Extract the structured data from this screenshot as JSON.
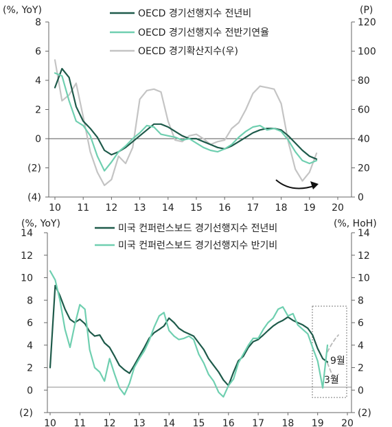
{
  "chart_data": [
    {
      "type": "line",
      "title": "",
      "y_left_unit": "(%, YoY)",
      "y_right_unit": "(P)",
      "y_left_ticks": [
        "8",
        "6",
        "4",
        "2",
        "0",
        "(2)",
        "(4)"
      ],
      "y_left_lim": [
        -4,
        8
      ],
      "y_right_ticks": [
        "120",
        "100",
        "80",
        "60",
        "40",
        "20",
        "0"
      ],
      "y_right_lim": [
        0,
        120
      ],
      "x_ticks": [
        "10",
        "11",
        "12",
        "13",
        "14",
        "15",
        "16",
        "17",
        "18",
        "19",
        "20"
      ],
      "xlim": [
        10,
        20
      ],
      "legend_position": "top",
      "series": [
        {
          "name": "OECD 경기선행지수 전년비",
          "color": "#1e5a4a",
          "axis": "left",
          "x": [
            10.0,
            10.25,
            10.5,
            10.75,
            11.0,
            11.25,
            11.5,
            11.75,
            12.0,
            12.25,
            12.5,
            12.75,
            13.0,
            13.25,
            13.5,
            13.75,
            14.0,
            14.25,
            14.5,
            14.75,
            15.0,
            15.25,
            15.5,
            15.75,
            16.0,
            16.25,
            16.5,
            16.75,
            17.0,
            17.25,
            17.5,
            17.75,
            18.0,
            18.25,
            18.5,
            18.75,
            19.0,
            19.25
          ],
          "y": [
            3.5,
            4.8,
            4.2,
            2.2,
            1.2,
            0.7,
            0.1,
            -0.8,
            -1.1,
            -0.9,
            -0.6,
            -0.2,
            0.2,
            0.6,
            1.0,
            1.0,
            0.8,
            0.5,
            0.2,
            0.0,
            0.0,
            -0.2,
            -0.4,
            -0.6,
            -0.7,
            -0.5,
            -0.2,
            0.1,
            0.4,
            0.6,
            0.7,
            0.7,
            0.6,
            0.2,
            -0.3,
            -0.8,
            -1.2,
            -1.4
          ]
        },
        {
          "name": "OECD 경기선행지수 전반기연율",
          "color": "#6fcfb0",
          "axis": "left",
          "x": [
            10.0,
            10.25,
            10.5,
            10.75,
            11.0,
            11.25,
            11.5,
            11.75,
            12.0,
            12.25,
            12.5,
            12.75,
            13.0,
            13.25,
            13.5,
            13.75,
            14.0,
            14.25,
            14.5,
            14.75,
            15.0,
            15.25,
            15.5,
            15.75,
            16.0,
            16.25,
            16.5,
            16.75,
            17.0,
            17.25,
            17.5,
            17.75,
            18.0,
            18.25,
            18.5,
            18.75,
            19.0,
            19.25
          ],
          "y": [
            4.5,
            4.3,
            2.6,
            1.2,
            0.9,
            0.2,
            -1.2,
            -2.2,
            -1.6,
            -0.9,
            -0.5,
            0.0,
            0.4,
            0.9,
            0.8,
            0.3,
            0.2,
            0.1,
            -0.1,
            0.0,
            -0.3,
            -0.6,
            -0.8,
            -0.9,
            -0.7,
            -0.4,
            0.1,
            0.5,
            0.8,
            0.9,
            0.6,
            0.7,
            0.5,
            -0.1,
            -0.9,
            -1.5,
            -1.7,
            -1.5
          ]
        },
        {
          "name": "OECD 경기확산지수(우)",
          "color": "#c4c4c4",
          "axis": "right",
          "x": [
            10.0,
            10.25,
            10.5,
            10.75,
            11.0,
            11.25,
            11.5,
            11.75,
            12.0,
            12.25,
            12.5,
            12.75,
            13.0,
            13.25,
            13.5,
            13.75,
            14.0,
            14.25,
            14.5,
            14.75,
            15.0,
            15.25,
            15.5,
            15.75,
            16.0,
            16.25,
            16.5,
            16.75,
            17.0,
            17.25,
            17.5,
            17.75,
            18.0,
            18.25,
            18.5,
            18.75,
            19.0,
            19.25
          ],
          "y": [
            94,
            66,
            70,
            78,
            55,
            31,
            17,
            8,
            12,
            28,
            23,
            34,
            67,
            73,
            74,
            72,
            52,
            39,
            38,
            42,
            43,
            40,
            36,
            38,
            39,
            47,
            51,
            60,
            71,
            76,
            75,
            74,
            64,
            38,
            19,
            11,
            17,
            30
          ]
        }
      ],
      "annotation": "rising arrow"
    },
    {
      "type": "line",
      "title": "",
      "y_left_unit": "(%, YoY)",
      "y_right_unit": "(%, HoH)",
      "y_left_ticks": [
        "14",
        "12",
        "10",
        "8",
        "6",
        "4",
        "2",
        "0",
        "(2)"
      ],
      "y_left_lim": [
        -2,
        14
      ],
      "y_right_ticks": [
        "14",
        "12",
        "10",
        "8",
        "6",
        "4",
        "2",
        "0",
        "(2)"
      ],
      "y_right_lim": [
        -2,
        14
      ],
      "x_ticks": [
        "10",
        "11",
        "12",
        "13",
        "14",
        "15",
        "16",
        "17",
        "18",
        "19",
        "20"
      ],
      "xlim": [
        10,
        20
      ],
      "legend_position": "top",
      "series": [
        {
          "name": "미국 컨퍼런스보드 경기선행지수 전년비",
          "color": "#1e5a4a",
          "axis": "left",
          "x": [
            10.0,
            10.17,
            10.33,
            10.5,
            10.67,
            10.83,
            11.0,
            11.17,
            11.33,
            11.5,
            11.67,
            11.83,
            12.0,
            12.17,
            12.33,
            12.5,
            12.67,
            12.83,
            13.0,
            13.17,
            13.33,
            13.5,
            13.67,
            13.83,
            14.0,
            14.17,
            14.33,
            14.5,
            14.67,
            14.83,
            15.0,
            15.17,
            15.33,
            15.5,
            15.67,
            15.83,
            16.0,
            16.17,
            16.33,
            16.5,
            16.67,
            16.83,
            17.0,
            17.17,
            17.33,
            17.5,
            17.67,
            17.83,
            18.0,
            18.17,
            18.33,
            18.5,
            18.67,
            18.83,
            19.0,
            19.17,
            19.33
          ],
          "y": [
            2.0,
            9.3,
            8.4,
            7.2,
            6.3,
            6.0,
            6.3,
            5.9,
            5.2,
            4.8,
            4.9,
            4.2,
            3.8,
            3.0,
            2.2,
            1.8,
            1.5,
            2.2,
            3.0,
            3.8,
            4.6,
            5.1,
            5.4,
            5.7,
            6.4,
            6.0,
            5.5,
            5.2,
            5.0,
            4.8,
            4.2,
            3.6,
            2.8,
            2.2,
            1.6,
            0.9,
            0.4,
            1.6,
            2.6,
            3.0,
            3.8,
            4.3,
            4.5,
            4.9,
            5.3,
            5.7,
            6.0,
            6.2,
            6.5,
            6.2,
            6.0,
            5.8,
            5.5,
            4.9,
            3.7,
            2.8,
            2.5
          ]
        },
        {
          "name": "미국 컨퍼런스보드 경기선행지수 반기비",
          "color": "#6fcfb0",
          "axis": "left",
          "x": [
            10.0,
            10.17,
            10.33,
            10.5,
            10.67,
            10.83,
            11.0,
            11.17,
            11.33,
            11.5,
            11.67,
            11.83,
            12.0,
            12.17,
            12.33,
            12.5,
            12.67,
            12.83,
            13.0,
            13.17,
            13.33,
            13.5,
            13.67,
            13.83,
            14.0,
            14.17,
            14.33,
            14.5,
            14.67,
            14.83,
            15.0,
            15.17,
            15.33,
            15.5,
            15.67,
            15.83,
            16.0,
            16.17,
            16.33,
            16.5,
            16.67,
            16.83,
            17.0,
            17.17,
            17.33,
            17.5,
            17.67,
            17.83,
            18.0,
            18.17,
            18.33,
            18.5,
            18.67,
            18.83,
            19.0,
            19.17,
            19.33
          ],
          "y": [
            10.6,
            9.8,
            8.0,
            5.4,
            3.8,
            5.8,
            7.6,
            7.2,
            3.6,
            2.0,
            1.6,
            0.8,
            2.8,
            1.4,
            0.2,
            -0.4,
            0.6,
            2.0,
            2.8,
            3.5,
            4.4,
            5.6,
            6.6,
            6.9,
            5.3,
            4.8,
            4.5,
            4.6,
            4.8,
            4.5,
            3.2,
            2.4,
            1.4,
            0.8,
            -0.2,
            -0.6,
            0.4,
            1.0,
            2.4,
            3.2,
            4.0,
            4.6,
            4.6,
            5.4,
            6.0,
            6.4,
            7.2,
            7.4,
            6.6,
            6.8,
            5.8,
            5.4,
            5.0,
            3.8,
            2.6,
            0.2,
            4.0
          ]
        },
        {
          "name": "9월 projection",
          "color": "#b8b8b8",
          "axis": "left",
          "dashed": true,
          "x": [
            19.33,
            19.45,
            19.6,
            19.7
          ],
          "y": [
            3.4,
            4.0,
            4.6,
            4.9
          ]
        },
        {
          "name": "3월 projection",
          "color": "#b8b8b8",
          "axis": "left",
          "dashed": true,
          "x": [
            19.33,
            19.45,
            19.6,
            19.7
          ],
          "y": [
            2.4,
            1.6,
            0.9,
            1.4
          ]
        }
      ],
      "annotations": [
        "9월",
        "3월"
      ]
    }
  ]
}
